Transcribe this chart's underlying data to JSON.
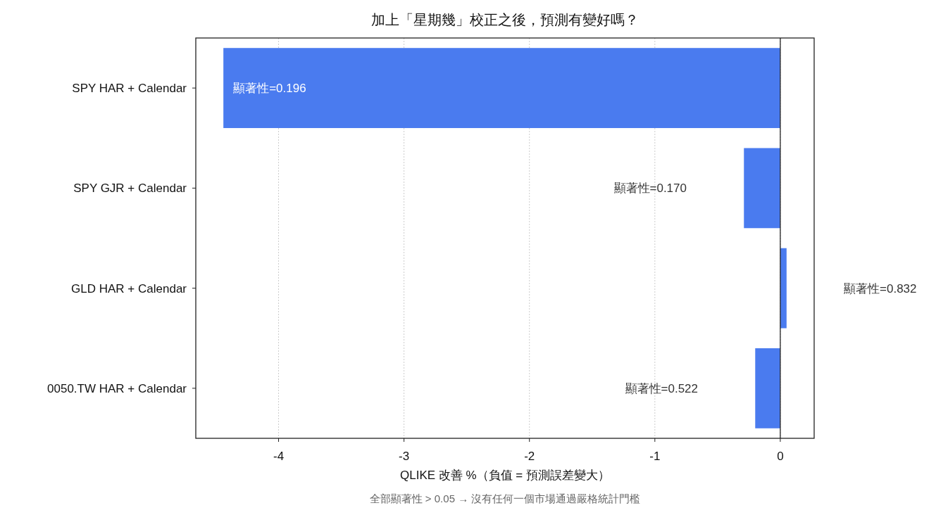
{
  "chart_data": {
    "type": "bar",
    "orientation": "horizontal",
    "title": "加上「星期幾」校正之後，預測有變好嗎？",
    "xlabel": "QLIKE 改善 %（負值 = 預測誤差變大）",
    "annotations": [
      "全部顯著性 > 0.05 → 沒有任何一個市場通過嚴格統計門檻",
      "顯著性=0.196",
      "顯著性=0.170",
      "顯著性=0.832",
      "顯著性=0.522"
    ],
    "categories": [
      "SPY HAR + Calendar",
      "SPY GJR + Calendar",
      "GLD HAR + Calendar",
      "0050.TW HAR + Calendar"
    ],
    "values": [
      -4.44,
      -0.29,
      0.05,
      -0.2
    ],
    "color": "#4a7bef",
    "xlim": [
      -4.66,
      0.27
    ],
    "xticks": [
      -4,
      -3,
      -2,
      -1,
      0
    ],
    "grid": "x",
    "ref_lines": [
      {
        "axis": "x",
        "value": 0,
        "color": "#222222"
      }
    ]
  }
}
